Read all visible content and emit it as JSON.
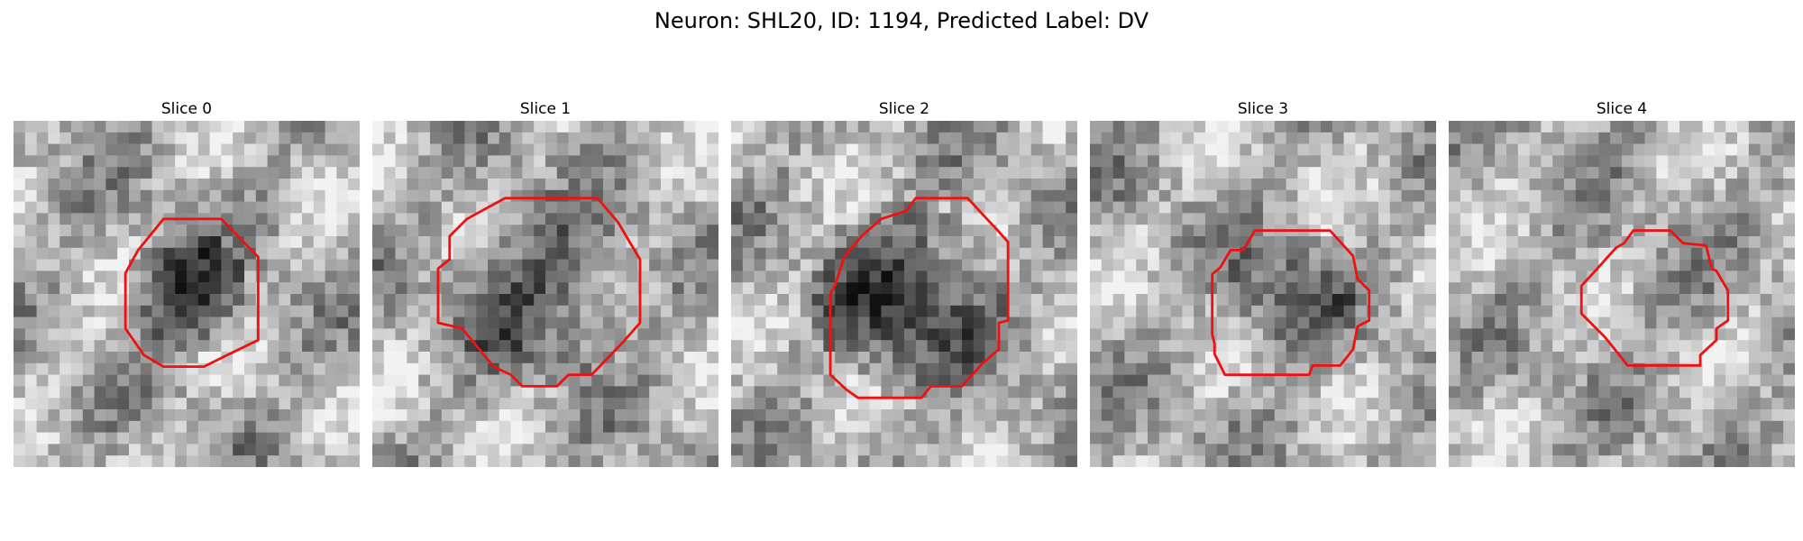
{
  "figure": {
    "title": "Neuron: SHL20, ID: 1194, Predicted Label: DV",
    "outline_color": "#ee1111"
  },
  "panels": [
    {
      "title": "Slice 0"
    },
    {
      "title": "Slice 1"
    },
    {
      "title": "Slice 2"
    },
    {
      "title": "Slice 3"
    },
    {
      "title": "Slice 4"
    }
  ]
}
